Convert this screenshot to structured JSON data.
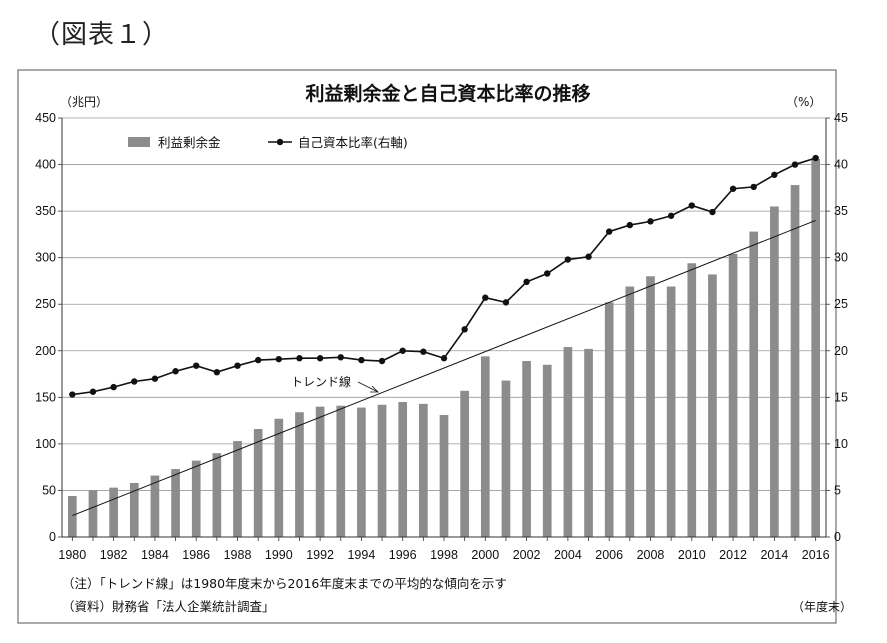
{
  "figure_label": "（図表１）",
  "chart_data": {
    "type": "bar",
    "title": "利益剰余金と自己資本比率の推移",
    "y_left_unit": "（兆円）",
    "y_right_unit": "（%）",
    "x_unit": "（年度末）",
    "x_labels": [
      "1980",
      "1982",
      "1984",
      "1986",
      "1988",
      "1990",
      "1992",
      "1994",
      "1996",
      "1998",
      "2000",
      "2002",
      "2004",
      "2006",
      "2008",
      "2010",
      "2012",
      "2014",
      "2016"
    ],
    "y_left_ticks": [
      "0",
      "50",
      "100",
      "150",
      "200",
      "250",
      "300",
      "350",
      "400",
      "450"
    ],
    "y_right_ticks": [
      "0",
      "5",
      "10",
      "15",
      "20",
      "25",
      "30",
      "35",
      "40",
      "45"
    ],
    "ylim_left": [
      0,
      450
    ],
    "ylim_right": [
      0,
      45
    ],
    "grid": "horizontal",
    "legend": "top-left",
    "legend_bar_label": "利益剰余金",
    "legend_line_label": "自己資本比率(右軸)",
    "trend_label": "トレンド線",
    "x": [
      1980,
      1981,
      1982,
      1983,
      1984,
      1985,
      1986,
      1987,
      1988,
      1989,
      1990,
      1991,
      1992,
      1993,
      1994,
      1995,
      1996,
      1997,
      1998,
      1999,
      2000,
      2001,
      2002,
      2003,
      2004,
      2005,
      2006,
      2007,
      2008,
      2009,
      2010,
      2011,
      2012,
      2013,
      2014,
      2015,
      2016
    ],
    "series": [
      {
        "name": "利益剰余金",
        "type": "bar",
        "axis": "left",
        "color": "#8c8c8c",
        "values": [
          44,
          50,
          53,
          58,
          66,
          73,
          82,
          90,
          103,
          116,
          127,
          134,
          140,
          141,
          139,
          142,
          145,
          143,
          131,
          157,
          194,
          168,
          189,
          185,
          204,
          202,
          252,
          269,
          280,
          269,
          294,
          282,
          304,
          328,
          355,
          378,
          406
        ]
      },
      {
        "name": "自己資本比率(右軸)",
        "type": "line",
        "axis": "right",
        "color": "#111111",
        "values": [
          15.3,
          15.6,
          16.1,
          16.7,
          17.0,
          17.8,
          18.4,
          17.7,
          18.4,
          19.0,
          19.1,
          19.2,
          19.2,
          19.3,
          19.0,
          18.9,
          20.0,
          19.9,
          19.2,
          22.3,
          25.7,
          25.2,
          27.4,
          28.3,
          29.8,
          30.1,
          32.8,
          33.5,
          33.9,
          34.5,
          35.6,
          34.9,
          37.4,
          37.6,
          38.9,
          40.0,
          40.7
        ]
      }
    ],
    "trend_line": {
      "axis": "left",
      "x": [
        1980,
        2016
      ],
      "y": [
        23,
        340
      ]
    }
  },
  "notes": {
    "note1": "（注）「トレンド線」は1980年度末から2016年度末までの平均的な傾向を示す",
    "note2": "（資料）財務省「法人企業統計調査」"
  }
}
